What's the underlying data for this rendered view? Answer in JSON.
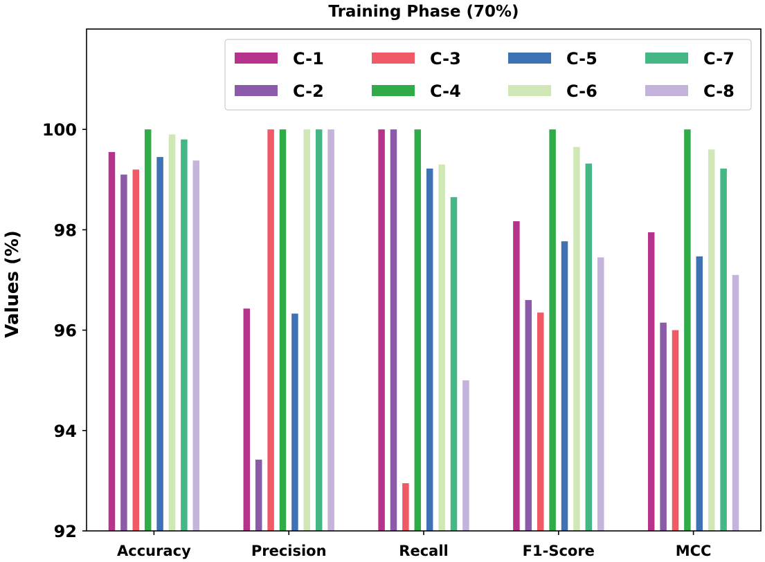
{
  "chart_data": {
    "type": "bar",
    "title": "Training Phase (70%)",
    "xlabel": "",
    "ylabel": "Values (%)",
    "ylim": [
      92,
      102
    ],
    "yticks": [
      "92",
      "94",
      "96",
      "98",
      "100"
    ],
    "grid": false,
    "legend_position": "top-right",
    "categories": [
      "Accuracy",
      "Precision",
      "Recall",
      "F1-Score",
      "MCC"
    ],
    "series": [
      {
        "name": "C-1",
        "color": "#b5338a",
        "values": [
          99.55,
          96.43,
          100.0,
          98.17,
          97.95
        ]
      },
      {
        "name": "C-2",
        "color": "#8b5aa8",
        "values": [
          99.1,
          93.42,
          100.0,
          96.6,
          96.15
        ]
      },
      {
        "name": "C-3",
        "color": "#ef5a66",
        "values": [
          99.2,
          100.0,
          92.95,
          96.35,
          96.0
        ]
      },
      {
        "name": "C-4",
        "color": "#2fab48",
        "values": [
          100.0,
          100.0,
          100.0,
          100.0,
          100.0
        ]
      },
      {
        "name": "C-5",
        "color": "#3f72b5",
        "values": [
          99.45,
          96.33,
          99.22,
          97.77,
          97.47
        ]
      },
      {
        "name": "C-6",
        "color": "#cfe8b6",
        "values": [
          99.9,
          100.0,
          99.3,
          99.65,
          99.6
        ]
      },
      {
        "name": "C-7",
        "color": "#44b785",
        "values": [
          99.8,
          100.0,
          98.65,
          99.32,
          99.22
        ]
      },
      {
        "name": "C-8",
        "color": "#c4b3da",
        "values": [
          99.38,
          100.0,
          95.0,
          97.45,
          97.1
        ]
      }
    ]
  }
}
